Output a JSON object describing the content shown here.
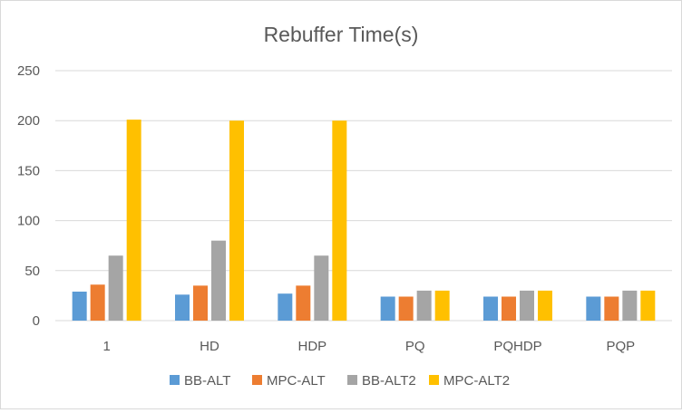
{
  "chart_data": {
    "type": "bar",
    "title": "Rebuffer Time(s)",
    "xlabel": "",
    "ylabel": "",
    "ylim": [
      0,
      250
    ],
    "yticks": [
      0,
      50,
      100,
      150,
      200,
      250
    ],
    "grid": true,
    "legend_position": "bottom",
    "categories": [
      "1",
      "HD",
      "HDP",
      "PQ",
      "PQHDP",
      "PQP"
    ],
    "series": [
      {
        "name": "BB-ALT",
        "color": "#5B9BD5",
        "values": [
          29,
          26,
          27,
          24,
          24,
          24
        ]
      },
      {
        "name": "MPC-ALT",
        "color": "#ED7D31",
        "values": [
          36,
          35,
          35,
          24,
          24,
          24
        ]
      },
      {
        "name": "BB-ALT2",
        "color": "#A5A5A5",
        "values": [
          65,
          80,
          65,
          30,
          30,
          30
        ]
      },
      {
        "name": "MPC-ALT2",
        "color": "#FFC000",
        "values": [
          201,
          200,
          200,
          30,
          30,
          30
        ]
      }
    ]
  }
}
